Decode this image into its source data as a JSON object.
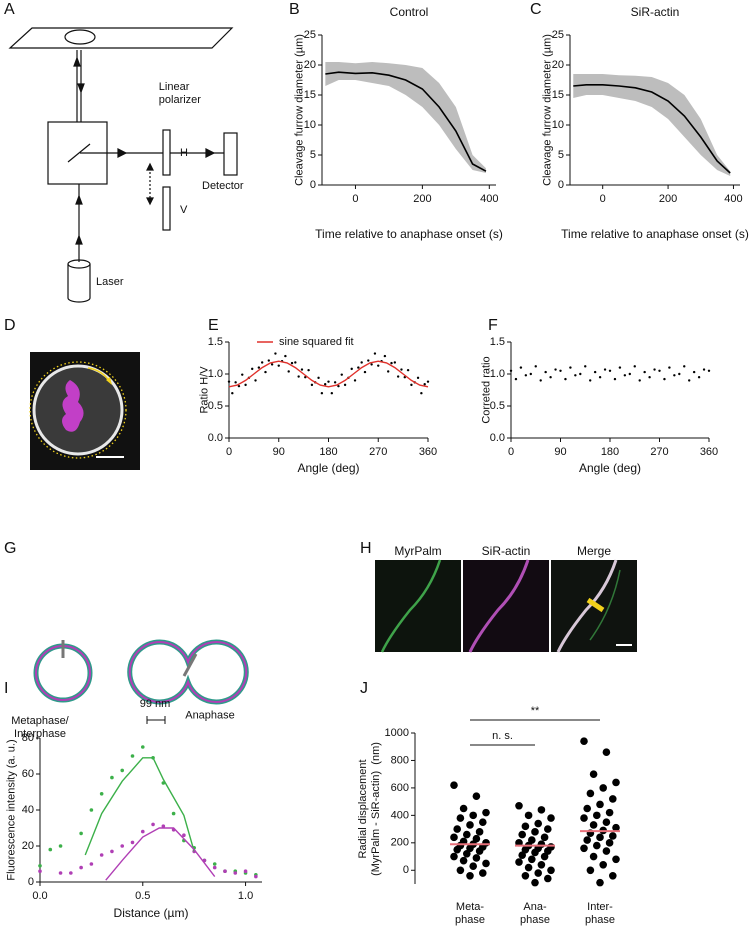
{
  "panel_labels": [
    "A",
    "B",
    "C",
    "D",
    "E",
    "F",
    "G",
    "H",
    "I",
    "J"
  ],
  "diagram_a": {
    "polarizer": "Linear\npolarizer",
    "h": "H",
    "v": "V",
    "detector": "Detector",
    "laser": "Laser"
  },
  "diagram_g": {
    "metaphase": "Metaphase/\nInterphase",
    "anaphase": "Anaphase"
  },
  "image_h": {
    "channels": [
      "MyrPalm",
      "SiR-actin",
      "Merge"
    ]
  },
  "chart_data": [
    {
      "type": "line",
      "title": "Control",
      "xlabel": "Time relative to anaphase onset (s)",
      "ylabel": "Cleavage furrow diameter (µm)",
      "x": [
        -90,
        -50,
        0,
        50,
        100,
        150,
        200,
        250,
        300,
        350,
        390
      ],
      "series": [
        {
          "color": "#000000",
          "values": [
            18.5,
            18.8,
            18.6,
            18.7,
            18.3,
            17.5,
            16,
            13,
            9,
            3.5,
            2.3
          ]
        }
      ],
      "band": {
        "color": "#bdbdbd",
        "lower": [
          16.5,
          17.5,
          17.5,
          17,
          16.5,
          15,
          13,
          10,
          6,
          2.5,
          2
        ],
        "upper": [
          20.5,
          20.5,
          20.3,
          20.5,
          20.3,
          20,
          19.5,
          17,
          13,
          5,
          2.8
        ]
      },
      "xlim": [
        -100,
        420
      ],
      "xticks": [
        0,
        200,
        400
      ],
      "ylim": [
        0,
        25
      ],
      "yticks": [
        0,
        5,
        10,
        15,
        20,
        25
      ]
    },
    {
      "type": "line",
      "title": "SiR-actin",
      "xlabel": "Time relative to anaphase onset (s)",
      "ylabel": "Cleavage furrow diameter (µm)",
      "x": [
        -90,
        -50,
        0,
        50,
        100,
        150,
        200,
        250,
        300,
        350,
        390
      ],
      "series": [
        {
          "color": "#000000",
          "values": [
            16.5,
            16.7,
            16.7,
            16.5,
            16.2,
            15.5,
            14,
            11.5,
            8,
            4,
            2
          ]
        }
      ],
      "band": {
        "color": "#bdbdbd",
        "lower": [
          14.5,
          15,
          15,
          14.5,
          14,
          13,
          11,
          8,
          5,
          2.5,
          1.5
        ],
        "upper": [
          18.5,
          18.5,
          18.5,
          18.3,
          18.2,
          18,
          17,
          15,
          11,
          5,
          2.3
        ]
      },
      "xlim": [
        -100,
        420
      ],
      "xticks": [
        0,
        200,
        400
      ],
      "ylim": [
        0,
        25
      ],
      "yticks": [
        0,
        5,
        10,
        15,
        20,
        25
      ]
    },
    {
      "type": "scatter",
      "xlabel": "Angle (deg)",
      "ylabel": "Ratio H/V",
      "legend": "top",
      "series": [
        {
          "color": "#000000",
          "mode": "markers",
          "x": [
            0,
            6,
            12,
            18,
            24,
            30,
            36,
            42,
            48,
            54,
            60,
            66,
            72,
            78,
            84,
            90,
            96,
            102,
            108,
            114,
            120,
            126,
            132,
            138,
            144,
            150,
            156,
            162,
            168,
            174,
            180,
            186,
            192,
            198,
            204,
            210,
            216,
            222,
            228,
            234,
            240,
            246,
            252,
            258,
            264,
            270,
            276,
            282,
            288,
            294,
            300,
            306,
            312,
            318,
            324,
            330,
            336,
            342,
            348,
            354,
            360
          ],
          "values": [
            0.88,
            0.7,
            0.87,
            0.81,
            0.99,
            0.83,
            0.94,
            1.08,
            0.9,
            1.1,
            1.18,
            1.03,
            1.21,
            1.15,
            1.32,
            1.13,
            1.2,
            1.28,
            1.04,
            1.17,
            1.18,
            0.96,
            1.07,
            0.95,
            1.06,
            0.83,
            0.87,
            0.94,
            0.7,
            0.84,
            0.88,
            0.7,
            0.87,
            0.81,
            0.99,
            0.83,
            0.94,
            1.08,
            0.9,
            1.1,
            1.18,
            1.03,
            1.21,
            1.15,
            1.32,
            1.13,
            1.2,
            1.28,
            1.04,
            1.17,
            1.18,
            0.96,
            1.07,
            0.95,
            1.06,
            0.83,
            0.87,
            0.94,
            0.7,
            0.84,
            0.88
          ]
        },
        {
          "name": "sine squared fit",
          "color": "#e0312b",
          "mode": "line",
          "x": [
            0,
            15,
            30,
            45,
            60,
            75,
            90,
            105,
            120,
            135,
            150,
            165,
            180,
            195,
            210,
            225,
            240,
            255,
            270,
            285,
            300,
            315,
            330,
            345,
            360
          ],
          "values": [
            0.8,
            0.827,
            0.9,
            1.0,
            1.1,
            1.173,
            1.2,
            1.173,
            1.1,
            1.0,
            0.9,
            0.827,
            0.8,
            0.827,
            0.9,
            1.0,
            1.1,
            1.173,
            1.2,
            1.173,
            1.1,
            1.0,
            0.9,
            0.827,
            0.8
          ]
        }
      ],
      "xlim": [
        0,
        360
      ],
      "xticks": [
        0,
        90,
        180,
        270,
        360
      ],
      "ylim": [
        0,
        1.5
      ],
      "yticks": [
        {
          "value": 0,
          "label": "0.0"
        },
        0.5,
        {
          "value": 1,
          "label": "1.0"
        },
        1.5
      ]
    },
    {
      "type": "scatter",
      "xlabel": "Angle (deg)",
      "ylabel": "Correted ratio",
      "series": [
        {
          "color": "#000000",
          "mode": "markers",
          "x": [
            0,
            9,
            18,
            27,
            36,
            45,
            54,
            63,
            72,
            81,
            90,
            99,
            108,
            117,
            126,
            135,
            144,
            153,
            162,
            171,
            180,
            189,
            198,
            207,
            216,
            225,
            234,
            243,
            252,
            261,
            270,
            279,
            288,
            297,
            306,
            315,
            324,
            333,
            342,
            351,
            360
          ],
          "values": [
            1.05,
            0.92,
            1.1,
            0.98,
            1.0,
            1.12,
            0.9,
            1.03,
            0.95,
            1.07,
            1.05,
            0.92,
            1.1,
            0.98,
            1.0,
            1.12,
            0.9,
            1.03,
            0.95,
            1.07,
            1.05,
            0.92,
            1.1,
            0.98,
            1.0,
            1.12,
            0.9,
            1.03,
            0.95,
            1.07,
            1.05,
            0.92,
            1.1,
            0.98,
            1.0,
            1.12,
            0.9,
            1.03,
            0.95,
            1.07,
            1.05
          ]
        }
      ],
      "xlim": [
        0,
        360
      ],
      "xticks": [
        0,
        90,
        180,
        270,
        360
      ],
      "ylim": [
        0,
        1.5
      ],
      "yticks": [
        {
          "value": 0,
          "label": "0.0"
        },
        0.5,
        {
          "value": 1,
          "label": "1.0"
        },
        1.5
      ]
    },
    {
      "type": "line",
      "xlabel": "Distance (µm)",
      "ylabel": "Fluorescence intensity (a. u.)",
      "annotation": "99 nm",
      "series": [
        {
          "color": "#3cb04a",
          "mode": "markers",
          "x": [
            0.0,
            0.05,
            0.1,
            0.2,
            0.25,
            0.3,
            0.35,
            0.4,
            0.45,
            0.5,
            0.55,
            0.6,
            0.65,
            0.7,
            0.75,
            0.8,
            0.85,
            0.9,
            0.95,
            1.0,
            1.05
          ],
          "values": [
            9,
            18,
            20,
            27,
            40,
            49,
            58,
            62,
            70,
            75,
            69,
            55,
            38,
            23,
            19,
            12,
            10,
            6,
            6,
            5,
            4
          ]
        },
        {
          "color": "#b03fb5",
          "mode": "markers",
          "x": [
            0.0,
            0.1,
            0.15,
            0.2,
            0.25,
            0.3,
            0.35,
            0.4,
            0.45,
            0.5,
            0.55,
            0.6,
            0.65,
            0.7,
            0.75,
            0.8,
            0.85,
            0.9,
            0.95,
            1.0,
            1.05
          ],
          "values": [
            6,
            5,
            5,
            8,
            10,
            15,
            17,
            20,
            22,
            28,
            32,
            31,
            29,
            26,
            17,
            12,
            8,
            6,
            5,
            6,
            3
          ]
        },
        {
          "color": "#3cb04a",
          "mode": "line",
          "x": [
            0.22,
            0.3,
            0.4,
            0.5,
            0.55,
            0.6,
            0.7,
            0.75
          ],
          "values": [
            15,
            38,
            56,
            69,
            69,
            57,
            37,
            17
          ]
        },
        {
          "color": "#b03fb5",
          "mode": "line",
          "x": [
            0.32,
            0.4,
            0.5,
            0.58,
            0.65,
            0.75,
            0.85
          ],
          "values": [
            1,
            12,
            25,
            30,
            30,
            18,
            3
          ]
        }
      ],
      "xlim": [
        0,
        1.08
      ],
      "xticks": [
        {
          "value": 0,
          "label": "0.0"
        },
        0.5,
        {
          "value": 1,
          "label": "1.0"
        }
      ],
      "ylim": [
        0,
        80
      ],
      "yticks": [
        0,
        20,
        40,
        60,
        80
      ]
    },
    {
      "type": "strip",
      "ylabel": "Radial displacement\n(MyrPalm - SiR-actin)  (nm)",
      "categories": [
        "Meta-\nphase",
        "Ana-\nphase",
        "Inter-\nphase"
      ],
      "series": [
        {
          "color": "#000000",
          "values": [
            [
              620,
              540,
              450,
              420,
              400,
              380,
              350,
              330,
              300,
              280,
              260,
              240,
              230,
              210,
              200,
              190,
              180,
              170,
              160,
              150,
              140,
              120,
              100,
              90,
              70,
              50,
              30,
              0,
              -20,
              -40
            ],
            [
              470,
              440,
              400,
              380,
              340,
              320,
              300,
              280,
              260,
              240,
              220,
              200,
              190,
              180,
              170,
              160,
              150,
              140,
              130,
              110,
              100,
              80,
              60,
              40,
              20,
              0,
              -20,
              -40,
              -60,
              -90
            ],
            [
              940,
              860,
              700,
              640,
              600,
              560,
              520,
              480,
              450,
              420,
              400,
              380,
              350,
              330,
              310,
              290,
              270,
              250,
              240,
              220,
              200,
              180,
              160,
              140,
              100,
              80,
              40,
              0,
              -40,
              -90
            ]
          ]
        }
      ],
      "means": {
        "color": "#e8707a",
        "values": [
          190,
          180,
          285
        ]
      },
      "annotations": [
        "n. s.",
        "**"
      ],
      "ylim": [
        -100,
        1000
      ],
      "yticks": [
        0,
        200,
        400,
        600,
        800,
        1000
      ]
    }
  ]
}
